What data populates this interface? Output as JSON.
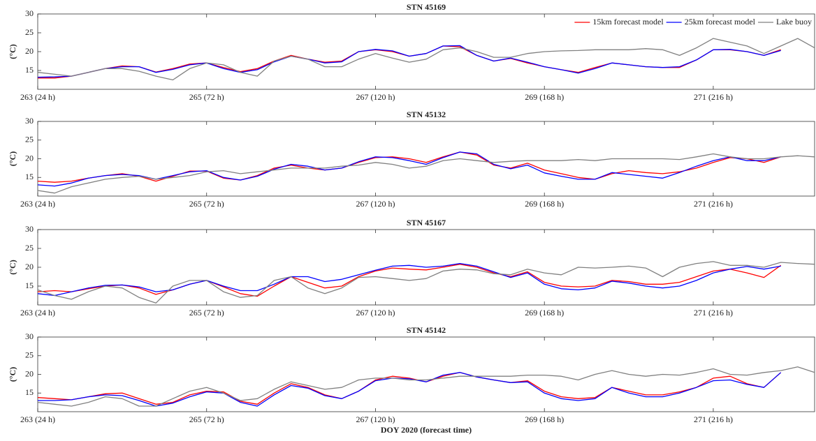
{
  "chart_data": [
    {
      "type": "line",
      "title": "STN 45169",
      "ylabel": "(°C)",
      "legend": "upper right",
      "x": [
        263,
        263.2,
        263.4,
        263.6,
        263.8,
        264,
        264.2,
        264.4,
        264.6,
        264.8,
        265,
        265.2,
        265.4,
        265.6,
        265.8,
        266,
        266.2,
        266.4,
        266.6,
        266.8,
        267,
        267.2,
        267.4,
        267.6,
        267.8,
        268,
        268.2,
        268.4,
        268.6,
        268.8,
        269,
        269.2,
        269.4,
        269.6,
        269.8,
        270,
        270.2,
        270.4,
        270.6,
        270.8,
        271,
        271.2,
        271.4,
        271.6,
        271.8,
        272,
        272.2
      ],
      "xlim": [
        263,
        272.2
      ],
      "xticks": [
        {
          "value": 263,
          "label": "263 (24 h)"
        },
        {
          "value": 265,
          "label": "265 (72 h)"
        },
        {
          "value": 267,
          "label": "267 (120 h)"
        },
        {
          "value": 269,
          "label": "269 (168 h)"
        },
        {
          "value": 271,
          "label": "271 (216 h)"
        }
      ],
      "ylim": [
        10,
        30
      ],
      "yticks": [
        15,
        20,
        25,
        30
      ],
      "series": [
        {
          "name": "15km forecast model",
          "color": "#ff0000",
          "values": [
            13.0,
            13.0,
            13.5,
            14.5,
            15.5,
            16.2,
            16.0,
            14.6,
            15.5,
            16.7,
            17.0,
            15.8,
            14.7,
            15.5,
            17.5,
            19.0,
            18.0,
            17.2,
            17.5,
            20.0,
            20.5,
            20.0,
            18.8,
            19.5,
            21.5,
            21.3,
            19.0,
            17.5,
            18.2,
            17.0,
            16.0,
            15.2,
            14.5,
            15.8,
            17.0,
            16.5,
            16.0,
            15.8,
            15.8,
            17.8,
            20.5,
            20.5,
            20.0,
            19.0,
            20.5,
            null,
            null
          ]
        },
        {
          "name": "25km forecast model",
          "color": "#0000ff",
          "values": [
            13.2,
            13.3,
            13.5,
            14.5,
            15.5,
            16.0,
            16.0,
            14.5,
            15.3,
            16.5,
            17.0,
            15.5,
            14.5,
            15.2,
            17.3,
            18.8,
            18.0,
            17.0,
            17.3,
            20.0,
            20.6,
            20.2,
            18.8,
            19.5,
            21.5,
            21.6,
            19.0,
            17.5,
            18.3,
            17.2,
            16.0,
            15.2,
            14.3,
            15.5,
            17.0,
            16.5,
            16.0,
            15.8,
            16.0,
            17.8,
            20.5,
            20.6,
            20.0,
            19.0,
            20.3,
            null,
            null
          ]
        },
        {
          "name": "Lake buoy",
          "color": "#808080",
          "values": [
            14.5,
            14.0,
            13.5,
            14.5,
            15.5,
            15.5,
            14.8,
            13.5,
            12.5,
            15.5,
            17.0,
            16.5,
            14.5,
            13.5,
            17.5,
            18.8,
            18.0,
            16.0,
            16.0,
            18.0,
            19.5,
            18.3,
            17.2,
            18.0,
            20.5,
            21.0,
            20.0,
            18.5,
            18.5,
            19.5,
            20.0,
            20.2,
            20.3,
            20.5,
            20.5,
            20.5,
            20.8,
            20.5,
            19.0,
            21.0,
            23.5,
            22.5,
            21.5,
            19.5,
            21.5,
            23.5,
            21.0
          ]
        }
      ]
    },
    {
      "type": "line",
      "title": "STN 45132",
      "ylabel": "(°C)",
      "x": [
        263,
        263.2,
        263.4,
        263.6,
        263.8,
        264,
        264.2,
        264.4,
        264.6,
        264.8,
        265,
        265.2,
        265.4,
        265.6,
        265.8,
        266,
        266.2,
        266.4,
        266.6,
        266.8,
        267,
        267.2,
        267.4,
        267.6,
        267.8,
        268,
        268.2,
        268.4,
        268.6,
        268.8,
        269,
        269.2,
        269.4,
        269.6,
        269.8,
        270,
        270.2,
        270.4,
        270.6,
        270.8,
        271,
        271.2,
        271.4,
        271.6,
        271.8,
        272,
        272.2
      ],
      "xlim": [
        263,
        272.2
      ],
      "xticks": [
        {
          "value": 263,
          "label": "263 (24 h)"
        },
        {
          "value": 265,
          "label": "265 (72 h)"
        },
        {
          "value": 267,
          "label": "267 (120 h)"
        },
        {
          "value": 269,
          "label": "269 (168 h)"
        },
        {
          "value": 271,
          "label": "271 (216 h)"
        }
      ],
      "ylim": [
        10,
        30
      ],
      "yticks": [
        15,
        20,
        25,
        30
      ],
      "series": [
        {
          "color": "#ff0000",
          "values": [
            14.0,
            13.7,
            14.0,
            14.8,
            15.5,
            16.0,
            15.3,
            14.0,
            15.3,
            16.7,
            16.7,
            14.8,
            14.3,
            15.5,
            17.5,
            18.3,
            17.5,
            17.0,
            17.5,
            19.0,
            20.3,
            20.5,
            20.0,
            19.0,
            20.5,
            21.8,
            21.0,
            18.3,
            17.5,
            18.8,
            17.0,
            16.0,
            15.0,
            14.5,
            16.0,
            16.8,
            16.3,
            16.0,
            16.5,
            17.5,
            19.0,
            20.3,
            20.0,
            19.0,
            20.5,
            null,
            null
          ]
        },
        {
          "color": "#0000ff",
          "values": [
            13.0,
            12.7,
            13.5,
            14.8,
            15.5,
            15.8,
            15.5,
            14.5,
            15.5,
            16.5,
            16.8,
            15.0,
            14.3,
            15.3,
            17.2,
            18.5,
            18.0,
            17.0,
            17.5,
            19.2,
            20.5,
            20.3,
            19.5,
            18.5,
            20.3,
            21.8,
            21.3,
            18.5,
            17.3,
            18.3,
            16.2,
            15.3,
            14.5,
            14.5,
            16.3,
            15.8,
            15.3,
            14.8,
            16.3,
            18.0,
            19.5,
            20.5,
            19.5,
            19.5,
            20.5,
            null,
            null
          ]
        },
        {
          "color": "#808080",
          "values": [
            11.5,
            10.8,
            12.5,
            13.5,
            14.5,
            15.0,
            15.3,
            14.5,
            15.0,
            15.5,
            16.5,
            16.8,
            16.0,
            16.5,
            17.0,
            17.5,
            17.5,
            17.5,
            18.0,
            18.3,
            19.0,
            18.5,
            17.5,
            18.0,
            19.5,
            20.0,
            19.5,
            19.0,
            19.3,
            19.5,
            19.5,
            19.5,
            19.8,
            19.5,
            20.0,
            20.0,
            20.0,
            20.0,
            19.8,
            20.5,
            21.3,
            20.5,
            20.0,
            20.0,
            20.5,
            20.8,
            20.5
          ]
        }
      ]
    },
    {
      "type": "line",
      "title": "STN 45167",
      "ylabel": "(°C)",
      "x": [
        263,
        263.2,
        263.4,
        263.6,
        263.8,
        264,
        264.2,
        264.4,
        264.6,
        264.8,
        265,
        265.2,
        265.4,
        265.6,
        265.8,
        266,
        266.2,
        266.4,
        266.6,
        266.8,
        267,
        267.2,
        267.4,
        267.6,
        267.8,
        268,
        268.2,
        268.4,
        268.6,
        268.8,
        269,
        269.2,
        269.4,
        269.6,
        269.8,
        270,
        270.2,
        270.4,
        270.6,
        270.8,
        271,
        271.2,
        271.4,
        271.6,
        271.8,
        272,
        272.2
      ],
      "xlim": [
        263,
        272.2
      ],
      "xticks": [
        {
          "value": 263,
          "label": "263 (24 h)"
        },
        {
          "value": 265,
          "label": "265 (72 h)"
        },
        {
          "value": 267,
          "label": "267 (120 h)"
        },
        {
          "value": 269,
          "label": "269 (168 h)"
        },
        {
          "value": 271,
          "label": "271 (216 h)"
        }
      ],
      "ylim": [
        10,
        30
      ],
      "yticks": [
        15,
        20,
        25,
        30
      ],
      "series": [
        {
          "color": "#ff0000",
          "values": [
            13.5,
            13.8,
            13.5,
            14.3,
            15.0,
            15.3,
            14.5,
            12.8,
            14.0,
            15.5,
            16.5,
            14.8,
            13.0,
            12.3,
            15.0,
            17.5,
            16.0,
            14.5,
            15.0,
            17.5,
            19.0,
            19.8,
            19.5,
            19.3,
            20.0,
            20.8,
            20.0,
            18.5,
            17.5,
            18.8,
            16.0,
            15.0,
            14.8,
            15.0,
            16.5,
            16.2,
            15.5,
            15.5,
            16.0,
            17.5,
            19.0,
            19.5,
            18.5,
            17.3,
            20.5,
            null,
            null
          ]
        },
        {
          "color": "#0000ff",
          "values": [
            13.0,
            12.5,
            13.5,
            14.5,
            15.2,
            15.3,
            14.8,
            13.5,
            14.0,
            15.5,
            16.5,
            15.0,
            13.8,
            13.8,
            15.5,
            17.5,
            17.5,
            16.2,
            16.8,
            18.0,
            19.2,
            20.3,
            20.5,
            20.0,
            20.3,
            21.0,
            20.3,
            18.8,
            17.3,
            18.5,
            15.5,
            14.3,
            14.0,
            14.5,
            16.3,
            15.8,
            15.0,
            14.5,
            15.0,
            16.5,
            18.5,
            19.5,
            20.2,
            19.5,
            20.3,
            null,
            null
          ]
        },
        {
          "color": "#808080",
          "values": [
            14.0,
            12.5,
            11.5,
            13.5,
            15.0,
            14.5,
            12.0,
            10.5,
            15.0,
            16.5,
            16.5,
            13.5,
            12.0,
            12.5,
            16.5,
            17.5,
            14.5,
            13.0,
            14.5,
            17.3,
            17.5,
            17.0,
            16.5,
            17.0,
            19.0,
            19.5,
            19.3,
            18.3,
            18.0,
            19.5,
            18.5,
            18.0,
            20.0,
            19.8,
            20.0,
            20.3,
            19.8,
            17.5,
            20.0,
            21.0,
            21.5,
            20.5,
            20.5,
            20.0,
            21.3,
            21.0,
            20.8
          ]
        }
      ]
    },
    {
      "type": "line",
      "title": "STN 45142",
      "ylabel": "(°C)",
      "xlabel": "DOY 2020 (forecast time)",
      "x": [
        263,
        263.2,
        263.4,
        263.6,
        263.8,
        264,
        264.2,
        264.4,
        264.6,
        264.8,
        265,
        265.2,
        265.4,
        265.6,
        265.8,
        266,
        266.2,
        266.4,
        266.6,
        266.8,
        267,
        267.2,
        267.4,
        267.6,
        267.8,
        268,
        268.2,
        268.4,
        268.6,
        268.8,
        269,
        269.2,
        269.4,
        269.6,
        269.8,
        270,
        270.2,
        270.4,
        270.6,
        270.8,
        271,
        271.2,
        271.4,
        271.6,
        271.8,
        272,
        272.2
      ],
      "xlim": [
        263,
        272.2
      ],
      "xticks": [
        {
          "value": 263,
          "label": "263 (24 h)"
        },
        {
          "value": 265,
          "label": "265 (72 h)"
        },
        {
          "value": 267,
          "label": "267 (120 h)"
        },
        {
          "value": 269,
          "label": "269 (168 h)"
        },
        {
          "value": 271,
          "label": "271 (216 h)"
        }
      ],
      "ylim": [
        10,
        30
      ],
      "yticks": [
        15,
        20,
        25,
        30
      ],
      "series": [
        {
          "color": "#ff0000",
          "values": [
            13.8,
            13.5,
            13.2,
            14.0,
            14.8,
            15.0,
            13.5,
            12.0,
            12.5,
            14.5,
            15.5,
            15.3,
            12.8,
            12.0,
            15.0,
            17.5,
            16.5,
            14.5,
            13.5,
            15.5,
            18.5,
            19.5,
            19.0,
            18.0,
            19.5,
            20.5,
            19.3,
            18.5,
            17.8,
            18.3,
            15.5,
            14.0,
            13.5,
            13.8,
            16.5,
            15.5,
            14.5,
            14.5,
            15.3,
            16.5,
            19.0,
            19.5,
            17.5,
            16.5,
            20.5,
            null,
            null
          ]
        },
        {
          "color": "#0000ff",
          "values": [
            13.0,
            13.0,
            13.2,
            14.0,
            14.5,
            14.3,
            13.0,
            11.5,
            12.3,
            14.0,
            15.3,
            15.0,
            12.5,
            11.5,
            14.5,
            17.0,
            16.3,
            14.3,
            13.5,
            15.5,
            18.3,
            19.0,
            18.8,
            18.0,
            19.8,
            20.5,
            19.3,
            18.5,
            17.8,
            18.0,
            15.0,
            13.5,
            13.0,
            13.5,
            16.5,
            15.0,
            14.0,
            14.0,
            15.0,
            16.5,
            18.3,
            18.5,
            17.3,
            16.5,
            20.5,
            null,
            null
          ]
        },
        {
          "color": "#808080",
          "values": [
            12.5,
            12.0,
            11.5,
            12.5,
            14.0,
            13.5,
            11.5,
            11.5,
            13.5,
            15.5,
            16.5,
            15.0,
            13.0,
            13.5,
            16.0,
            18.0,
            17.0,
            16.0,
            16.5,
            18.5,
            19.0,
            19.0,
            18.5,
            18.5,
            19.0,
            19.5,
            19.5,
            19.5,
            19.5,
            19.8,
            19.8,
            19.5,
            18.5,
            20.0,
            21.0,
            20.0,
            19.5,
            20.0,
            19.8,
            20.5,
            21.5,
            20.0,
            19.8,
            20.5,
            21.0,
            22.0,
            20.5
          ]
        }
      ]
    }
  ]
}
